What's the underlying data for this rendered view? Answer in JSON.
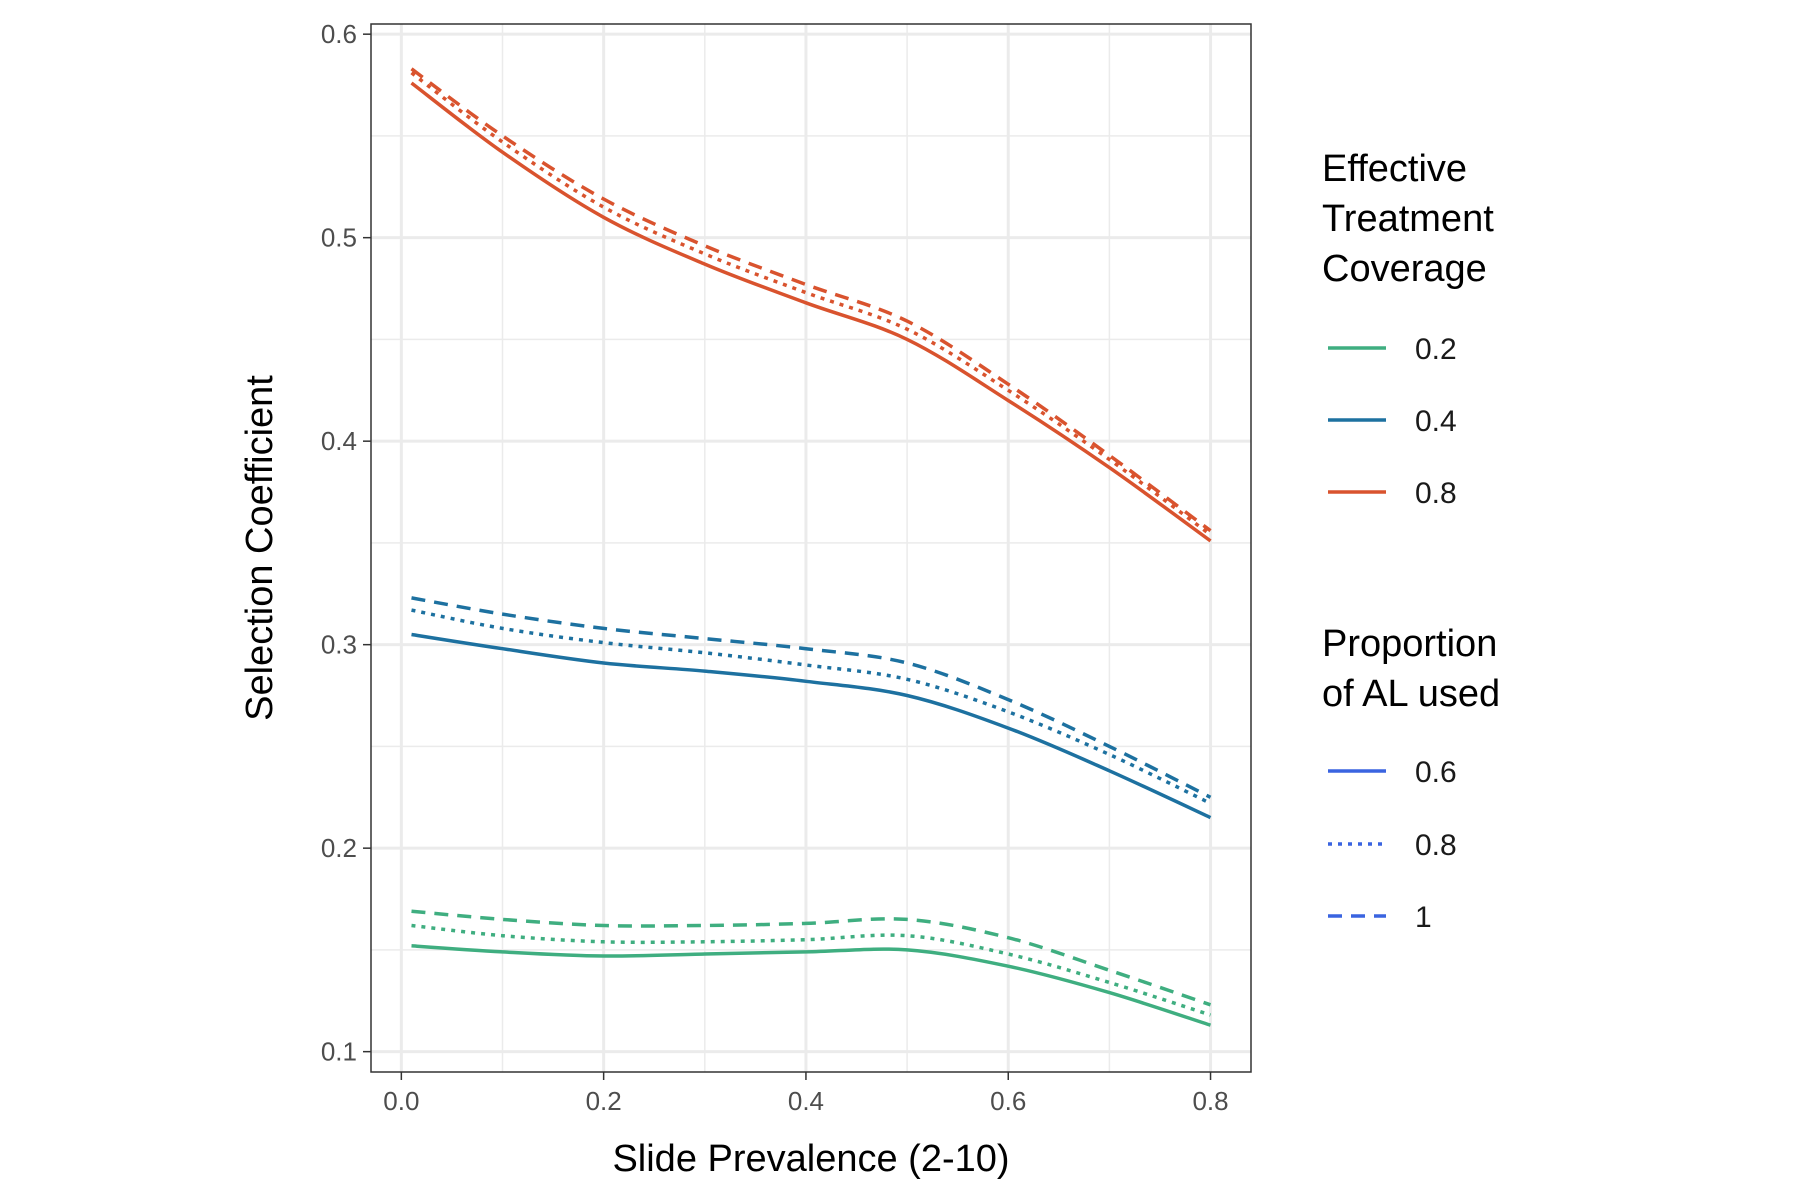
{
  "chart_data": {
    "type": "line",
    "xlabel": "Slide Prevalence (2-10)",
    "ylabel": "Selection Coefficient",
    "xlim": [
      -0.03,
      0.84
    ],
    "ylim": [
      0.09,
      0.605
    ],
    "xticks": [
      0.0,
      0.2,
      0.4,
      0.6,
      0.8
    ],
    "xtick_labels": [
      "0.0",
      "0.2",
      "0.4",
      "0.6",
      "0.8"
    ],
    "yticks": [
      0.1,
      0.2,
      0.3,
      0.4,
      0.5,
      0.6
    ],
    "ytick_labels": [
      "0.1",
      "0.2",
      "0.3",
      "0.4",
      "0.5",
      "0.6"
    ],
    "grid": true,
    "legend_placement": "right",
    "x": [
      0.01,
      0.1,
      0.2,
      0.3,
      0.4,
      0.5,
      0.6,
      0.7,
      0.8
    ],
    "colour_legend": {
      "title_lines": [
        "Effective",
        "Treatment",
        "Coverage"
      ],
      "entries": [
        {
          "label": "0.2",
          "color": "#3fae80"
        },
        {
          "label": "0.4",
          "color": "#1d71a0"
        },
        {
          "label": "0.8",
          "color": "#d9532e"
        }
      ]
    },
    "linetype_legend": {
      "title_lines": [
        "Proportion",
        "of AL used"
      ],
      "color": "#3a64e0",
      "entries": [
        {
          "label": "0.6",
          "dash": "solid"
        },
        {
          "label": "0.8",
          "dash": "dotted"
        },
        {
          "label": "1",
          "dash": "dashed"
        }
      ]
    },
    "series": [
      {
        "coverage": "0.2",
        "al_used": "0.6",
        "color": "#3fae80",
        "dash": "solid",
        "values": [
          0.152,
          0.149,
          0.147,
          0.148,
          0.149,
          0.15,
          0.142,
          0.129,
          0.113
        ]
      },
      {
        "coverage": "0.2",
        "al_used": "0.8",
        "color": "#3fae80",
        "dash": "dotted",
        "values": [
          0.162,
          0.157,
          0.154,
          0.154,
          0.155,
          0.157,
          0.148,
          0.134,
          0.118
        ]
      },
      {
        "coverage": "0.2",
        "al_used": "1",
        "color": "#3fae80",
        "dash": "dashed",
        "values": [
          0.169,
          0.165,
          0.162,
          0.162,
          0.163,
          0.165,
          0.156,
          0.14,
          0.123
        ]
      },
      {
        "coverage": "0.4",
        "al_used": "0.6",
        "color": "#1d71a0",
        "dash": "solid",
        "values": [
          0.305,
          0.298,
          0.291,
          0.287,
          0.282,
          0.275,
          0.259,
          0.238,
          0.215
        ]
      },
      {
        "coverage": "0.4",
        "al_used": "0.8",
        "color": "#1d71a0",
        "dash": "dotted",
        "values": [
          0.317,
          0.308,
          0.301,
          0.296,
          0.29,
          0.283,
          0.267,
          0.246,
          0.222
        ]
      },
      {
        "coverage": "0.4",
        "al_used": "1",
        "color": "#1d71a0",
        "dash": "dashed",
        "values": [
          0.323,
          0.315,
          0.308,
          0.303,
          0.298,
          0.291,
          0.273,
          0.25,
          0.225
        ]
      },
      {
        "coverage": "0.8",
        "al_used": "0.6",
        "color": "#d9532e",
        "dash": "solid",
        "values": [
          0.576,
          0.542,
          0.51,
          0.487,
          0.468,
          0.45,
          0.42,
          0.387,
          0.351
        ]
      },
      {
        "coverage": "0.8",
        "al_used": "0.8",
        "color": "#d9532e",
        "dash": "dotted",
        "values": [
          0.581,
          0.547,
          0.515,
          0.492,
          0.473,
          0.455,
          0.425,
          0.391,
          0.354
        ]
      },
      {
        "coverage": "0.8",
        "al_used": "1",
        "color": "#d9532e",
        "dash": "dashed",
        "values": [
          0.583,
          0.55,
          0.519,
          0.496,
          0.477,
          0.459,
          0.428,
          0.393,
          0.356
        ]
      }
    ]
  }
}
